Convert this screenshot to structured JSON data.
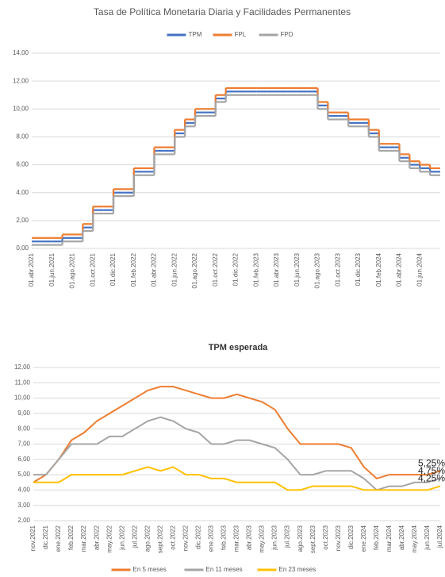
{
  "chart_data": [
    {
      "type": "step",
      "title": "Tasa de Política Monetaria Diaria y Facilidades Permanentes",
      "legend": "top",
      "categories": [
        "01.abr.2021",
        null,
        "01.jun.2021",
        null,
        "01.ago.2021",
        null,
        "01.oct.2021",
        null,
        "01.dic.2021",
        null,
        "01.feb.2022",
        null,
        "01.abr.2022",
        null,
        "01.jun.2022",
        null,
        "01.ago.2022",
        null,
        "01.oct.2022",
        null,
        "01.dic.2022",
        null,
        "01.feb.2023",
        null,
        "01.abr.2023",
        null,
        "01.jun.2023",
        null,
        "01.ago.2023",
        null,
        "01.oct.2023",
        null,
        "01.dic.2023",
        null,
        "01.feb.2024",
        null,
        "01.abr.2024",
        null,
        "01.jun.2024",
        null
      ],
      "series": [
        {
          "name": "TPM",
          "color": "#4472c4",
          "values": [
            0.5,
            0.5,
            0.5,
            0.75,
            0.75,
            1.5,
            2.75,
            2.75,
            4.0,
            4.0,
            5.5,
            5.5,
            7.0,
            7.0,
            8.25,
            9.0,
            9.75,
            9.75,
            10.75,
            11.25,
            11.25,
            11.25,
            11.25,
            11.25,
            11.25,
            11.25,
            11.25,
            11.25,
            10.25,
            9.5,
            9.5,
            9.0,
            9.0,
            8.25,
            7.25,
            7.25,
            6.5,
            6.0,
            5.75,
            5.5
          ]
        },
        {
          "name": "FPL",
          "color": "#ed7d31",
          "values": [
            0.75,
            0.75,
            0.75,
            1.0,
            1.0,
            1.75,
            3.0,
            3.0,
            4.25,
            4.25,
            5.75,
            5.75,
            7.25,
            7.25,
            8.5,
            9.25,
            10.0,
            10.0,
            11.0,
            11.5,
            11.5,
            11.5,
            11.5,
            11.5,
            11.5,
            11.5,
            11.5,
            11.5,
            10.5,
            9.75,
            9.75,
            9.25,
            9.25,
            8.5,
            7.5,
            7.5,
            6.75,
            6.25,
            6.0,
            5.75
          ]
        },
        {
          "name": "FPD",
          "color": "#a5a5a5",
          "values": [
            0.25,
            0.25,
            0.25,
            0.5,
            0.5,
            1.25,
            2.5,
            2.5,
            3.75,
            3.75,
            5.25,
            5.25,
            6.75,
            6.75,
            8.0,
            8.75,
            9.5,
            9.5,
            10.5,
            11.0,
            11.0,
            11.0,
            11.0,
            11.0,
            11.0,
            11.0,
            11.0,
            11.0,
            10.0,
            9.25,
            9.25,
            8.75,
            8.75,
            8.0,
            7.0,
            7.0,
            6.25,
            5.75,
            5.5,
            5.25
          ]
        }
      ],
      "ylim": [
        0,
        14
      ],
      "yticks": [
        {
          "value": 0,
          "label": "0,00"
        },
        {
          "value": 2,
          "label": "2,00"
        },
        {
          "value": 4,
          "label": "4,00"
        },
        {
          "value": 6,
          "label": "6,00"
        },
        {
          "value": 8,
          "label": "8,00"
        },
        {
          "value": 10,
          "label": "10,00"
        },
        {
          "value": 12,
          "label": "12,00"
        },
        {
          "value": 14,
          "label": "14,00"
        }
      ],
      "grid": true
    },
    {
      "type": "line",
      "title": "TPM esperada",
      "legend": "bottom",
      "categories": [
        "nov.2021",
        "dic.2021",
        "ene.2022",
        "feb.2022",
        "mar.2022",
        "abr.2022",
        "may.2022",
        "jun.2022",
        "jul.2022",
        "ago.2022",
        "sept.2022",
        "oct.2022",
        "nov.2022",
        "dic.2022",
        "ene.2023",
        "feb.2023",
        "mar.2023",
        "abr.2023",
        "may.2023",
        "jun.2023",
        "jul.2023",
        "ago.2023",
        "sept.2023",
        "oct.2023",
        "nov.2023",
        "dic.2023",
        "ene.2024",
        "feb.2024",
        "mar.2024",
        "abr.2024",
        "may.2024",
        "jun.2024",
        "jul.2024"
      ],
      "series": [
        {
          "name": "En 5 meses",
          "color": "#ed7d31",
          "values": [
            4.5,
            5.0,
            6.0,
            7.25,
            7.75,
            8.5,
            9.0,
            9.5,
            10.0,
            10.5,
            10.75,
            10.75,
            10.5,
            10.25,
            10.0,
            10.0,
            10.25,
            10.0,
            9.75,
            9.25,
            8.0,
            7.0,
            7.0,
            7.0,
            7.0,
            6.75,
            5.5,
            4.75,
            5.0,
            5.0,
            5.0,
            5.0,
            5.25
          ],
          "value_labels": [
            null,
            null,
            null,
            null,
            null,
            null,
            null,
            null,
            null,
            null,
            null,
            null,
            null,
            null,
            null,
            null,
            null,
            null,
            null,
            null,
            null,
            null,
            null,
            null,
            null,
            null,
            null,
            null,
            null,
            null,
            null,
            null,
            "5,25%"
          ]
        },
        {
          "name": "En 11 meses",
          "color": "#a5a5a5",
          "values": [
            5.0,
            5.0,
            6.0,
            7.0,
            7.0,
            7.0,
            7.5,
            7.5,
            8.0,
            8.5,
            8.75,
            8.5,
            8.0,
            7.75,
            7.0,
            7.0,
            7.25,
            7.25,
            7.0,
            6.75,
            6.0,
            5.0,
            5.0,
            5.25,
            5.25,
            5.25,
            4.75,
            4.0,
            4.25,
            4.25,
            4.5,
            4.5,
            4.75
          ],
          "value_labels": [
            null,
            null,
            null,
            null,
            null,
            null,
            null,
            null,
            null,
            null,
            null,
            null,
            null,
            null,
            null,
            null,
            null,
            null,
            null,
            null,
            null,
            null,
            null,
            null,
            null,
            null,
            null,
            null,
            null,
            null,
            null,
            null,
            "4,75%"
          ]
        },
        {
          "name": "En 23 meses",
          "color": "#ffc000",
          "values": [
            4.5,
            4.5,
            4.5,
            5.0,
            5.0,
            5.0,
            5.0,
            5.0,
            5.25,
            5.5,
            5.25,
            5.5,
            5.0,
            5.0,
            4.75,
            4.75,
            4.5,
            4.5,
            4.5,
            4.5,
            4.0,
            4.0,
            4.25,
            4.25,
            4.25,
            4.25,
            4.0,
            4.0,
            4.0,
            4.0,
            4.0,
            4.0,
            4.25
          ],
          "value_labels": [
            null,
            null,
            null,
            null,
            null,
            null,
            null,
            null,
            null,
            null,
            null,
            null,
            null,
            null,
            null,
            null,
            null,
            null,
            null,
            null,
            null,
            null,
            null,
            null,
            null,
            null,
            null,
            null,
            null,
            null,
            null,
            null,
            "4,25%"
          ]
        }
      ],
      "ylim": [
        2,
        12
      ],
      "yticks": [
        {
          "value": 2,
          "label": "2,00"
        },
        {
          "value": 3,
          "label": "3,00"
        },
        {
          "value": 4,
          "label": "4,00"
        },
        {
          "value": 5,
          "label": "5,00"
        },
        {
          "value": 6,
          "label": "6,00"
        },
        {
          "value": 7,
          "label": "7,00"
        },
        {
          "value": 8,
          "label": "8,00"
        },
        {
          "value": 9,
          "label": "9,00"
        },
        {
          "value": 10,
          "label": "10,00"
        },
        {
          "value": 11,
          "label": "11,00"
        },
        {
          "value": 12,
          "label": "12,00"
        }
      ],
      "grid": true
    }
  ]
}
